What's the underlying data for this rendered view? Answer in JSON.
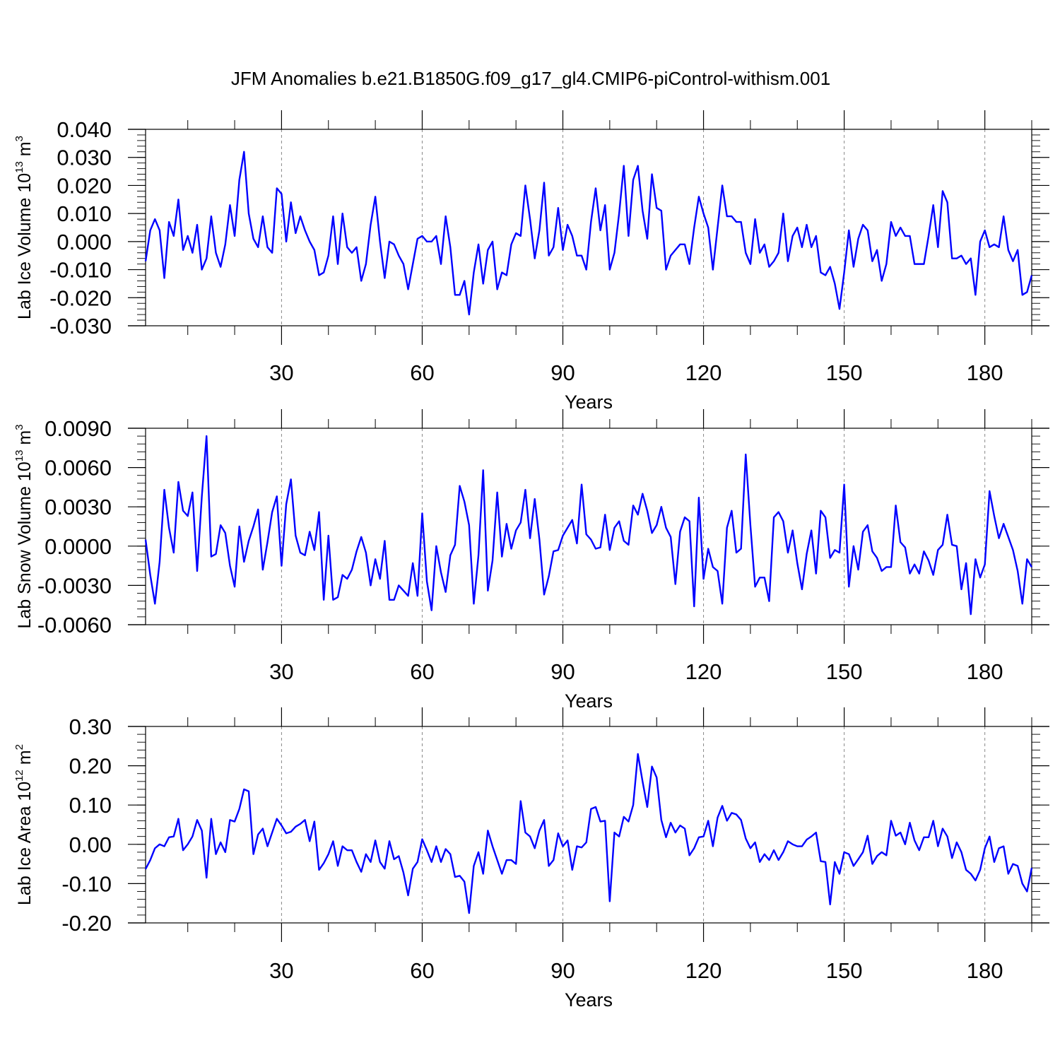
{
  "title": "JFM Anomalies b.e21.B1850G.f09_g17_gl4.CMIP6-piControl-withism.001",
  "chart_data": [
    {
      "type": "line",
      "title": "JFM Anomalies b.e21.B1850G.f09_g17_gl4.CMIP6-piControl-withism.001",
      "xlabel": "Years",
      "ylabel": {
        "main": "Lab Ice Volume 10",
        "exp": "13",
        "unit": " m",
        "unit_exp": "3"
      },
      "xlim": [
        1,
        190
      ],
      "ylim": [
        -0.03,
        0.04
      ],
      "xticks": [
        30,
        60,
        90,
        120,
        150,
        180
      ],
      "xtick_labels": [
        "30",
        "60",
        "90",
        "120",
        "150",
        "180"
      ],
      "yticks": [
        -0.03,
        -0.02,
        -0.01,
        0.0,
        0.01,
        0.02,
        0.03,
        0.04
      ],
      "ytick_labels": [
        "-0.030",
        "-0.020",
        "-0.010",
        "0.000",
        "0.010",
        "0.020",
        "0.030",
        "0.040"
      ],
      "gridlines": "dashed vertical at x ticks",
      "series": [
        {
          "name": "Lab Ice Volume",
          "color": "#0000ff",
          "x_start": 1,
          "values": [
            -0.007,
            0.004,
            0.008,
            0.004,
            -0.013,
            0.007,
            0.002,
            0.015,
            -0.003,
            0.002,
            -0.004,
            0.006,
            -0.01,
            -0.006,
            0.009,
            -0.004,
            -0.009,
            -0.001,
            0.013,
            0.002,
            0.022,
            0.032,
            0.01,
            0.001,
            -0.002,
            0.009,
            -0.002,
            -0.004,
            0.019,
            0.017,
            0.0,
            0.014,
            0.003,
            0.009,
            0.004,
            0.0,
            -0.003,
            -0.012,
            -0.011,
            -0.005,
            0.009,
            -0.008,
            0.01,
            -0.002,
            -0.004,
            -0.002,
            -0.014,
            -0.008,
            0.006,
            0.016,
            0.0,
            -0.013,
            0.0,
            -0.001,
            -0.005,
            -0.008,
            -0.017,
            -0.008,
            0.001,
            0.002,
            0.0,
            0.0,
            0.002,
            -0.008,
            0.009,
            -0.002,
            -0.019,
            -0.019,
            -0.014,
            -0.026,
            -0.011,
            -0.001,
            -0.015,
            -0.003,
            0.0,
            -0.017,
            -0.011,
            -0.012,
            -0.001,
            0.003,
            0.002,
            0.02,
            0.008,
            -0.006,
            0.004,
            0.021,
            -0.005,
            -0.002,
            0.012,
            -0.003,
            0.006,
            0.002,
            -0.005,
            -0.005,
            -0.01,
            0.007,
            0.019,
            0.004,
            0.013,
            -0.01,
            -0.004,
            0.01,
            0.027,
            0.002,
            0.022,
            0.027,
            0.011,
            0.001,
            0.024,
            0.012,
            0.011,
            -0.01,
            -0.005,
            -0.003,
            -0.001,
            -0.001,
            -0.008,
            0.005,
            0.016,
            0.01,
            0.005,
            -0.01,
            0.005,
            0.02,
            0.009,
            0.009,
            0.007,
            0.007,
            -0.004,
            -0.008,
            0.008,
            -0.004,
            -0.001,
            -0.009,
            -0.007,
            -0.004,
            0.01,
            -0.007,
            0.002,
            0.005,
            -0.002,
            0.006,
            -0.002,
            0.002,
            -0.011,
            -0.012,
            -0.009,
            -0.015,
            -0.024,
            -0.011,
            0.004,
            -0.009,
            0.001,
            0.006,
            0.004,
            -0.007,
            -0.003,
            -0.014,
            -0.008,
            0.007,
            0.002,
            0.005,
            0.002,
            0.002,
            -0.008,
            -0.008,
            -0.008,
            0.002,
            0.013,
            -0.002,
            0.018,
            0.014,
            -0.006,
            -0.006,
            -0.005,
            -0.008,
            -0.006,
            -0.019,
            0.0,
            0.004,
            -0.002,
            -0.001,
            -0.002,
            0.009,
            -0.003,
            -0.007,
            -0.003,
            -0.019,
            -0.018,
            -0.012
          ]
        }
      ]
    },
    {
      "type": "line",
      "xlabel": "Years",
      "ylabel": {
        "main": "Lab Snow Volume 10",
        "exp": "13",
        "unit": " m",
        "unit_exp": "3"
      },
      "xlim": [
        1,
        190
      ],
      "ylim": [
        -0.006,
        0.009
      ],
      "xticks": [
        30,
        60,
        90,
        120,
        150,
        180
      ],
      "xtick_labels": [
        "30",
        "60",
        "90",
        "120",
        "150",
        "180"
      ],
      "yticks": [
        -0.006,
        -0.003,
        0.0,
        0.003,
        0.006,
        0.009
      ],
      "ytick_labels": [
        "-0.0060",
        "-0.0030",
        "0.0000",
        "0.0030",
        "0.0060",
        "0.0090"
      ],
      "gridlines": "dashed vertical at x ticks",
      "series": [
        {
          "name": "Lab Snow Volume",
          "color": "#0000ff",
          "x_start": 1,
          "values": [
            0.0005,
            -0.0022,
            -0.0044,
            -0.0012,
            0.0043,
            0.0014,
            -0.0005,
            0.0049,
            0.0027,
            0.0023,
            0.0041,
            -0.0019,
            0.0038,
            0.0084,
            -0.0008,
            -0.0006,
            0.0016,
            0.001,
            -0.0015,
            -0.0031,
            0.0015,
            -0.0012,
            0.0004,
            0.0015,
            0.0028,
            -0.0018,
            0.0003,
            0.0026,
            0.0038,
            -0.0015,
            0.0032,
            0.0051,
            0.0008,
            -0.0005,
            -0.0007,
            0.0011,
            -0.0003,
            0.0026,
            -0.0041,
            0.0008,
            -0.0041,
            -0.0039,
            -0.0022,
            -0.0025,
            -0.0018,
            -0.0004,
            0.0007,
            -0.0005,
            -0.003,
            -0.001,
            -0.0025,
            0.0004,
            -0.0041,
            -0.0041,
            -0.003,
            -0.0034,
            -0.0038,
            -0.0013,
            -0.0038,
            0.0025,
            -0.0027,
            -0.0049,
            0.0,
            -0.002,
            -0.0035,
            -0.0007,
            0.0001,
            0.0046,
            0.0034,
            0.0016,
            -0.0044,
            -0.0007,
            0.0058,
            -0.0034,
            -0.0011,
            0.0041,
            -0.0008,
            0.0017,
            -0.0002,
            0.0012,
            0.0018,
            0.0043,
            0.0006,
            0.0036,
            0.0005,
            -0.0037,
            -0.0023,
            -0.0004,
            -0.0003,
            0.0008,
            0.0014,
            0.002,
            0.0002,
            0.0047,
            0.0009,
            0.0005,
            -0.0002,
            -0.0001,
            0.0024,
            -0.0003,
            0.0014,
            0.0019,
            0.0004,
            0.0001,
            0.0031,
            0.0024,
            0.004,
            0.0027,
            0.001,
            0.0016,
            0.003,
            0.0014,
            0.0007,
            -0.0029,
            0.0011,
            0.0022,
            0.0019,
            -0.0046,
            0.0037,
            -0.0025,
            -0.0002,
            -0.0016,
            -0.0019,
            -0.0044,
            0.0014,
            0.0027,
            -0.0005,
            -0.0002,
            0.007,
            0.0016,
            -0.0031,
            -0.0024,
            -0.0024,
            -0.0042,
            0.0022,
            0.0026,
            0.0019,
            -0.0005,
            0.0012,
            -0.0013,
            -0.0033,
            -0.0006,
            0.0012,
            -0.0021,
            0.0027,
            0.0022,
            -0.0009,
            -0.0003,
            -0.0005,
            0.0047,
            -0.0031,
            0.0,
            -0.0018,
            0.0011,
            0.0016,
            -0.0004,
            -0.0009,
            -0.0019,
            -0.0016,
            -0.0016,
            0.0031,
            0.0003,
            -0.0001,
            -0.0021,
            -0.0014,
            -0.0021,
            -0.0004,
            -0.0011,
            -0.0022,
            -0.0003,
            0.0001,
            0.0024,
            0.0001,
            0.0,
            -0.0033,
            -0.0013,
            -0.0052,
            -0.001,
            -0.0024,
            -0.0014,
            0.0042,
            0.0023,
            0.0006,
            0.0017,
            0.0007,
            -0.0003,
            -0.0019,
            -0.0044,
            -0.001,
            -0.0016
          ]
        }
      ]
    },
    {
      "type": "line",
      "xlabel": "Years",
      "ylabel": {
        "main": "Lab Ice Area 10",
        "exp": "12",
        "unit": " m",
        "unit_exp": "2"
      },
      "xlim": [
        1,
        190
      ],
      "ylim": [
        -0.2,
        0.3
      ],
      "xticks": [
        30,
        60,
        90,
        120,
        150,
        180
      ],
      "xtick_labels": [
        "30",
        "60",
        "90",
        "120",
        "150",
        "180"
      ],
      "yticks": [
        -0.2,
        -0.1,
        0.0,
        0.1,
        0.2,
        0.3
      ],
      "ytick_labels": [
        "-0.20",
        "-0.10",
        "0.00",
        "0.10",
        "0.20",
        "0.30"
      ],
      "gridlines": "dashed vertical at x ticks",
      "series": [
        {
          "name": "Lab Ice Area",
          "color": "#0000ff",
          "x_start": 1,
          "values": [
            -0.063,
            -0.04,
            -0.01,
            0.0,
            -0.005,
            0.018,
            0.02,
            0.065,
            -0.015,
            0.0,
            0.02,
            0.062,
            0.035,
            -0.085,
            0.065,
            -0.025,
            0.005,
            -0.02,
            0.062,
            0.058,
            0.09,
            0.14,
            0.135,
            -0.025,
            0.025,
            0.04,
            -0.005,
            0.03,
            0.065,
            0.048,
            0.028,
            0.032,
            0.045,
            0.052,
            0.062,
            0.008,
            0.058,
            -0.065,
            -0.048,
            -0.025,
            0.008,
            -0.055,
            -0.005,
            -0.015,
            -0.015,
            -0.045,
            -0.07,
            -0.025,
            -0.045,
            0.01,
            -0.045,
            -0.062,
            0.008,
            -0.038,
            -0.03,
            -0.072,
            -0.13,
            -0.062,
            -0.045,
            0.013,
            -0.015,
            -0.045,
            -0.005,
            -0.045,
            -0.012,
            -0.025,
            -0.083,
            -0.08,
            -0.095,
            -0.175,
            -0.055,
            -0.02,
            -0.075,
            0.035,
            -0.005,
            -0.04,
            -0.075,
            -0.04,
            -0.04,
            -0.05,
            0.11,
            0.03,
            0.02,
            -0.01,
            0.035,
            0.062,
            -0.055,
            -0.04,
            0.028,
            -0.005,
            0.01,
            -0.065,
            -0.005,
            -0.008,
            0.005,
            0.09,
            0.095,
            0.058,
            0.06,
            -0.145,
            0.03,
            0.02,
            0.07,
            0.058,
            0.1,
            0.23,
            0.16,
            0.095,
            0.198,
            0.17,
            0.062,
            0.018,
            0.055,
            0.03,
            0.048,
            0.04,
            -0.028,
            -0.01,
            0.018,
            0.02,
            0.06,
            -0.005,
            0.068,
            0.098,
            0.06,
            0.08,
            0.076,
            0.062,
            0.015,
            -0.01,
            0.005,
            -0.045,
            -0.025,
            -0.04,
            -0.015,
            -0.04,
            -0.02,
            0.008,
            0.0,
            -0.005,
            -0.005,
            0.012,
            0.02,
            0.03,
            -0.043,
            -0.045,
            -0.153,
            -0.045,
            -0.075,
            -0.02,
            -0.025,
            -0.055,
            -0.038,
            -0.02,
            0.022,
            -0.05,
            -0.03,
            -0.02,
            -0.028,
            0.06,
            0.022,
            0.03,
            0.0,
            0.055,
            0.01,
            -0.015,
            0.018,
            0.018,
            0.06,
            -0.005,
            0.04,
            0.02,
            -0.035,
            0.005,
            -0.02,
            -0.065,
            -0.075,
            -0.092,
            -0.065,
            -0.01,
            0.02,
            -0.045,
            -0.01,
            -0.005,
            -0.075,
            -0.05,
            -0.055,
            -0.1,
            -0.12,
            -0.06
          ]
        }
      ]
    }
  ]
}
